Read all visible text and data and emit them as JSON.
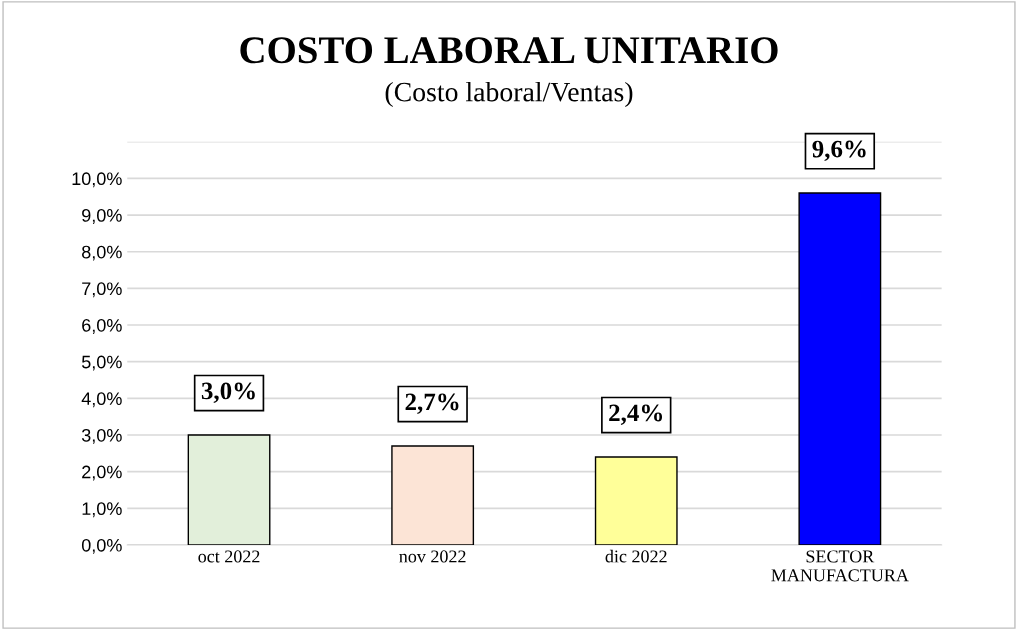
{
  "chart_data": {
    "type": "bar",
    "title": "COSTO LABORAL UNITARIO",
    "subtitle": "(Costo laboral/Ventas)",
    "categories": [
      "oct 2022",
      "nov 2022",
      "dic 2022",
      "SECTOR\nMANUFACTURA"
    ],
    "values": [
      3.0,
      2.7,
      2.4,
      9.6
    ],
    "colors": [
      "#e2efda",
      "#fce4d6",
      "#ffff99",
      "#0000ff"
    ],
    "value_labels": [
      "3,0%",
      "2,7%",
      "2,4%",
      "9,6%"
    ],
    "ylim": [
      0,
      11
    ],
    "yticks": [
      {
        "value": 0,
        "label": "0,0%"
      },
      {
        "value": 1,
        "label": "1,0%"
      },
      {
        "value": 2,
        "label": "2,0%"
      },
      {
        "value": 3,
        "label": "3,0%"
      },
      {
        "value": 4,
        "label": "4,0%"
      },
      {
        "value": 5,
        "label": "5,0%"
      },
      {
        "value": 6,
        "label": "6,0%"
      },
      {
        "value": 7,
        "label": "7,0%"
      },
      {
        "value": 8,
        "label": "8,0%"
      },
      {
        "value": 9,
        "label": "9,0%"
      },
      {
        "value": 10,
        "label": "10,0%"
      },
      {
        "value": 11,
        "label": null
      }
    ],
    "grid": "y"
  }
}
